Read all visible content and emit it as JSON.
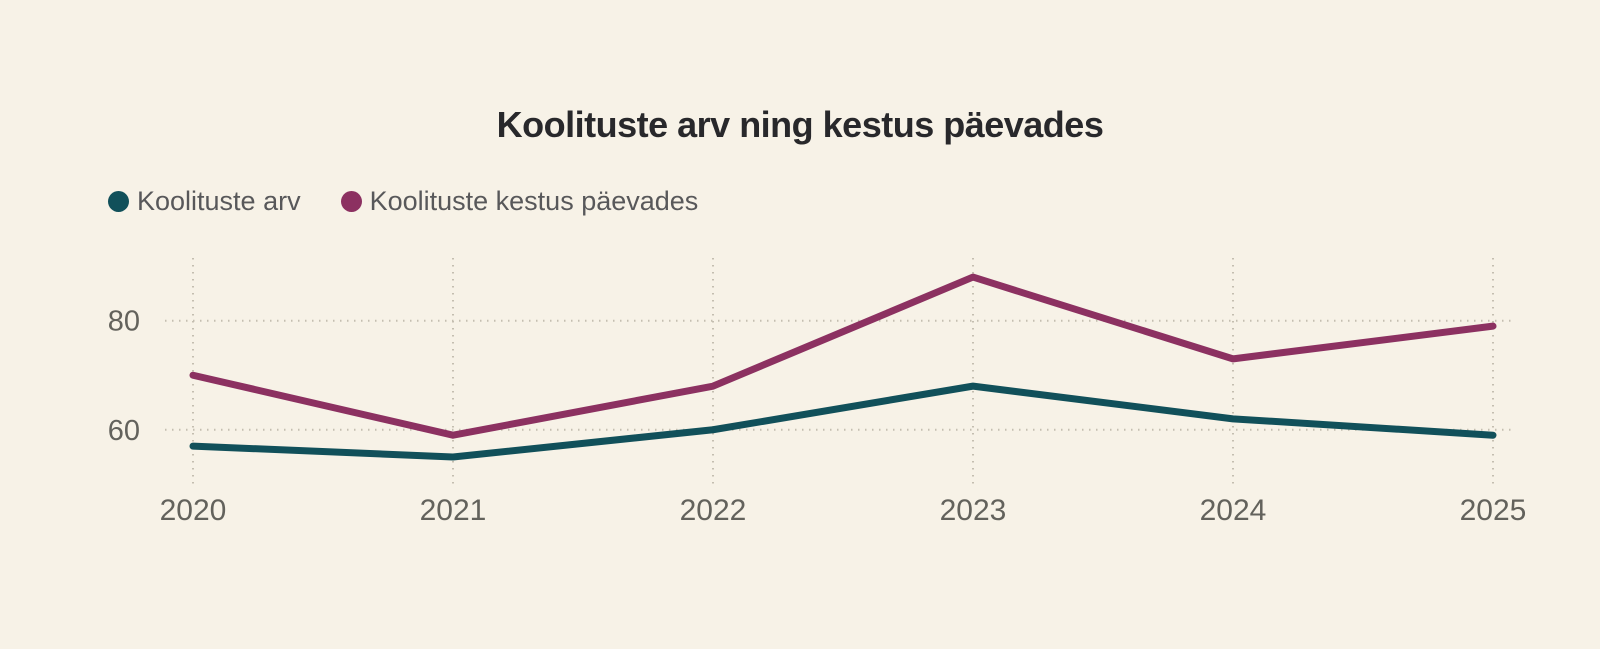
{
  "colors": {
    "background": "#f7f2e7",
    "grid": "#c4beb0",
    "axis_text": "#63625c",
    "legend_text": "#58585a",
    "title_text": "#28282b"
  },
  "chart_data": {
    "type": "line",
    "title": "Koolituste arv ning kestus päevades",
    "categories": [
      "2020",
      "2021",
      "2022",
      "2023",
      "2024",
      "2025"
    ],
    "series": [
      {
        "name": "Koolituste arv",
        "color": "#11505a",
        "values": [
          57,
          55,
          60,
          68,
          62,
          59
        ]
      },
      {
        "name": "Koolituste kestus päevades",
        "color": "#8c3161",
        "values": [
          70,
          59,
          68,
          88,
          73,
          79
        ]
      }
    ],
    "y_ticks": [
      80,
      60
    ],
    "ylim": [
      49.5,
      91.5
    ],
    "xlabel": "",
    "ylabel": "",
    "grid": "dotted",
    "legend_position": "top-left"
  }
}
